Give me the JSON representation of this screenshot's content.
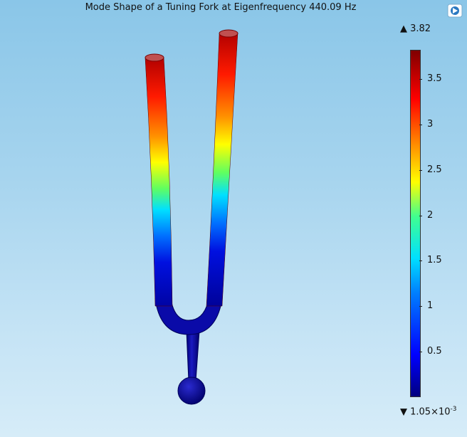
{
  "title": "Mode Shape of a Tuning Fork at Eigenfrequency 440.09 Hz",
  "logo_icon": "comsol-logo-icon",
  "colorbar": {
    "max_label": "▲ 3.82",
    "min_prefix": "▼ 1.05×10",
    "min_exponent": "-3",
    "ticks": [
      {
        "label": "3.5",
        "value": 3.5
      },
      {
        "label": "3",
        "value": 3.0
      },
      {
        "label": "2.5",
        "value": 2.5
      },
      {
        "label": "2",
        "value": 2.0
      },
      {
        "label": "1.5",
        "value": 1.5
      },
      {
        "label": "1",
        "value": 1.0
      },
      {
        "label": "0.5",
        "value": 0.5
      }
    ],
    "range": [
      0.00105,
      3.82
    ],
    "colors": [
      "#00007f",
      "#0000ff",
      "#0080ff",
      "#00e0ff",
      "#40ff90",
      "#ffff00",
      "#ff8000",
      "#ff0000",
      "#7f0000"
    ]
  }
}
